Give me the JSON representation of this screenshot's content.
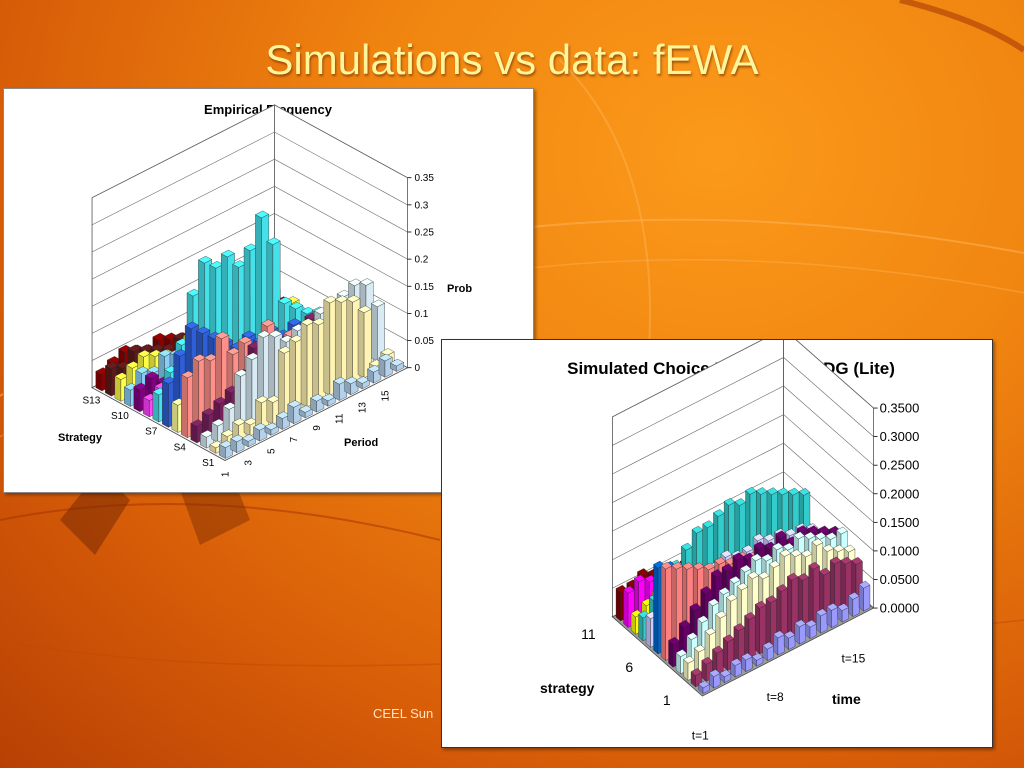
{
  "slide": {
    "title": "Simulations vs data: fEWA",
    "footer": "CEEL Sun"
  },
  "colors": {
    "background": "#f08410",
    "title_text": "#fff59a",
    "panel": "#ffffff"
  },
  "chart_data": [
    {
      "type": "bar",
      "variant": "3d-column",
      "title": "Empirical Frequency",
      "xlabel": "Period",
      "ylabel": "Prob",
      "zlabel": "Strategy",
      "x_ticks": [
        "1",
        "3",
        "5",
        "7",
        "9",
        "11",
        "13",
        "15"
      ],
      "z_ticks": [
        "S1",
        "S4",
        "S7",
        "S10",
        "S13"
      ],
      "y_ticks": [
        "0",
        "0.05",
        "0.1",
        "0.15",
        "0.2",
        "0.25",
        "0.3",
        "0.35"
      ],
      "ylim": [
        0,
        0.35
      ],
      "grid": true,
      "series": [
        {
          "color": "#b3d1ea",
          "values": [
            0.02,
            0.02,
            0.01,
            0.02,
            0.01,
            0.02,
            0.03,
            0.01,
            0.02,
            0.01,
            0.03,
            0.02,
            0.01,
            0.02,
            0.03,
            0.01
          ]
        },
        {
          "color": "#fff4b2",
          "values": [
            0.01,
            0.02,
            0.03,
            0.02,
            0.05,
            0.04,
            0.12,
            0.13,
            0.15,
            0.14,
            0.17,
            0.16,
            0.15,
            0.12,
            0.01,
            0.02
          ]
        },
        {
          "color": "#d8eaf4",
          "values": [
            0.02,
            0.03,
            0.05,
            0.1,
            0.12,
            0.15,
            0.14,
            0.12,
            0.13,
            0.11,
            0.14,
            0.12,
            0.15,
            0.16,
            0.15,
            0.1
          ]
        },
        {
          "color": "#7a1f5e",
          "values": [
            0.03,
            0.04,
            0.05,
            0.06,
            0.08,
            0.12,
            0.12,
            0.1,
            0.09,
            0.1,
            0.12,
            0.1,
            0.1,
            0.12,
            0.02,
            0.01
          ]
        },
        {
          "color": "#ff8f88",
          "values": [
            0.11,
            0.13,
            0.12,
            0.15,
            0.11,
            0.12,
            0.1,
            0.13,
            0.08,
            0.09,
            0.07,
            0.1,
            0.08,
            0.07,
            0.05,
            0.04
          ]
        },
        {
          "color": "#ffffa0",
          "values": [
            0.05,
            0.06,
            0.05,
            0.07,
            0.04,
            0.06,
            0.05,
            0.04,
            0.05,
            0.04,
            0.06,
            0.04,
            0.05,
            0.04,
            0.03,
            0.04
          ]
        },
        {
          "color": "#2e5fd8",
          "values": [
            0.08,
            0.12,
            0.16,
            0.14,
            0.12,
            0.1,
            0.08,
            0.09,
            0.07,
            0.08,
            0.06,
            0.07,
            0.05,
            0.06,
            0.05,
            0.04
          ]
        },
        {
          "color": "#44e1ea",
          "values": [
            0.05,
            0.08,
            0.12,
            0.2,
            0.25,
            0.23,
            0.24,
            0.21,
            0.23,
            0.28,
            0.22,
            0.1,
            0.08,
            0.06,
            0.05,
            0.04
          ]
        },
        {
          "color": "#ff44ff",
          "values": [
            0.03,
            0.04,
            0.05,
            0.04,
            0.03,
            0.05,
            0.04,
            0.03,
            0.04,
            0.03,
            0.05,
            0.04,
            0.03,
            0.02,
            0.03,
            0.02
          ]
        },
        {
          "color": "#800080",
          "values": [
            0.04,
            0.05,
            0.03,
            0.04,
            0.06,
            0.04,
            0.05,
            0.03,
            0.04,
            0.05,
            0.04,
            0.03,
            0.02,
            0.03,
            0.02,
            0.01
          ]
        },
        {
          "color": "#87cefa",
          "values": [
            0.03,
            0.05,
            0.04,
            0.06,
            0.05,
            0.04,
            0.03,
            0.05,
            0.04,
            0.03,
            0.02,
            0.03,
            0.02,
            0.03,
            0.02,
            0.01
          ]
        },
        {
          "color": "#ffff44",
          "values": [
            0.04,
            0.05,
            0.06,
            0.05,
            0.04,
            0.03,
            0.05,
            0.04,
            0.03,
            0.02,
            0.03,
            0.02,
            0.03,
            0.02,
            0.01,
            0.02
          ]
        },
        {
          "color": "#5c1a1a",
          "values": [
            0.05,
            0.04,
            0.06,
            0.05,
            0.04,
            0.03,
            0.04,
            0.03,
            0.02,
            0.03,
            0.02,
            0.03,
            0.02,
            0.01,
            0.02,
            0.01
          ]
        },
        {
          "color": "#8b0000",
          "values": [
            0.03,
            0.04,
            0.05,
            0.04,
            0.03,
            0.04,
            0.03,
            0.02,
            0.03,
            0.02,
            0.03,
            0.02,
            0.01,
            0.02,
            0.01,
            0.02
          ]
        }
      ]
    },
    {
      "type": "bar",
      "variant": "3d-column",
      "title": "Simulated Choice Frequency:  CDG (Lite)",
      "xlabel": "time",
      "zlabel": "strategy",
      "x_ticks": [
        "t=1",
        "t=8",
        "t=15"
      ],
      "z_ticks": [
        "1",
        "6",
        "11"
      ],
      "y_ticks": [
        "0.0000",
        "0.0500",
        "0.1000",
        "0.1500",
        "0.2000",
        "0.2500",
        "0.3000",
        "0.3500"
      ],
      "ylim": [
        0,
        0.35
      ],
      "grid": true,
      "series": [
        {
          "color": "#9999ff",
          "values": [
            0.01,
            0.02,
            0.01,
            0.02,
            0.02,
            0.01,
            0.02,
            0.03,
            0.02,
            0.03,
            0.02,
            0.03,
            0.03,
            0.02,
            0.03,
            0.04
          ]
        },
        {
          "color": "#993366",
          "values": [
            0.02,
            0.03,
            0.04,
            0.05,
            0.06,
            0.07,
            0.08,
            0.08,
            0.09,
            0.1,
            0.09,
            0.1,
            0.08,
            0.09,
            0.08,
            0.07
          ]
        },
        {
          "color": "#ffffcc",
          "values": [
            0.03,
            0.04,
            0.06,
            0.08,
            0.1,
            0.11,
            0.12,
            0.11,
            0.12,
            0.13,
            0.12,
            0.11,
            0.12,
            0.1,
            0.09,
            0.08
          ]
        },
        {
          "color": "#ccffff",
          "values": [
            0.03,
            0.05,
            0.07,
            0.09,
            0.1,
            0.11,
            0.12,
            0.13,
            0.12,
            0.13,
            0.12,
            0.13,
            0.12,
            0.11,
            0.1,
            0.1
          ]
        },
        {
          "color": "#660066",
          "values": [
            0.04,
            0.06,
            0.08,
            0.1,
            0.12,
            0.12,
            0.13,
            0.12,
            0.13,
            0.12,
            0.13,
            0.11,
            0.12,
            0.11,
            0.1,
            0.09
          ]
        },
        {
          "color": "#ff8080",
          "values": [
            0.16,
            0.15,
            0.14,
            0.13,
            0.12,
            0.12,
            0.11,
            0.11,
            0.1,
            0.1,
            0.09,
            0.09,
            0.08,
            0.08,
            0.07,
            0.07
          ]
        },
        {
          "color": "#0066cc",
          "values": [
            0.15,
            0.14,
            0.12,
            0.1,
            0.09,
            0.08,
            0.08,
            0.07,
            0.07,
            0.06,
            0.06,
            0.05,
            0.05,
            0.05,
            0.04,
            0.04
          ]
        },
        {
          "color": "#ccccff",
          "values": [
            0.05,
            0.06,
            0.07,
            0.07,
            0.08,
            0.08,
            0.08,
            0.09,
            0.08,
            0.08,
            0.09,
            0.08,
            0.08,
            0.07,
            0.07,
            0.06
          ]
        },
        {
          "color": "#33cccc",
          "values": [
            0.04,
            0.06,
            0.08,
            0.1,
            0.12,
            0.14,
            0.14,
            0.15,
            0.16,
            0.15,
            0.16,
            0.15,
            0.14,
            0.13,
            0.12,
            0.11
          ]
        },
        {
          "color": "#ffff00",
          "values": [
            0.03,
            0.04,
            0.05,
            0.06,
            0.07,
            0.07,
            0.08,
            0.07,
            0.08,
            0.07,
            0.07,
            0.06,
            0.06,
            0.05,
            0.05,
            0.04
          ]
        },
        {
          "color": "#ff00ff",
          "values": [
            0.06,
            0.07,
            0.06,
            0.06,
            0.05,
            0.05,
            0.05,
            0.04,
            0.04,
            0.04,
            0.03,
            0.03,
            0.03,
            0.03,
            0.02,
            0.02
          ]
        },
        {
          "color": "#800000",
          "values": [
            0.05,
            0.05,
            0.06,
            0.05,
            0.05,
            0.04,
            0.04,
            0.04,
            0.03,
            0.03,
            0.03,
            0.03,
            0.02,
            0.02,
            0.02,
            0.02
          ]
        }
      ]
    }
  ]
}
